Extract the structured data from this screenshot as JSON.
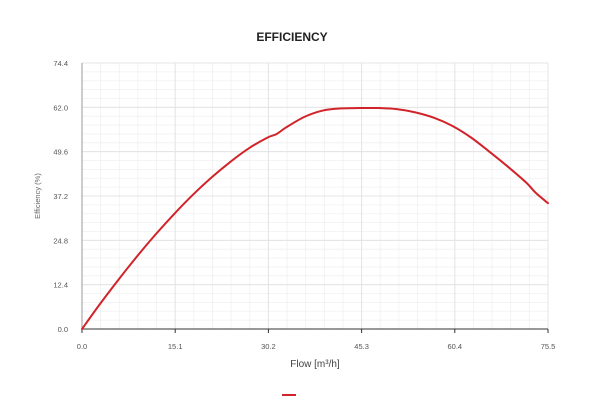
{
  "chart_data": {
    "type": "line",
    "title": "EFFICIENCY",
    "xlabel": "Flow [m³/h]",
    "ylabel": "Efficiency (%)",
    "xlim": [
      0,
      75.5
    ],
    "ylim": [
      0,
      74.4
    ],
    "x_ticks": [
      "0.0",
      "15.1",
      "30.2",
      "45.3",
      "60.4",
      "75.5"
    ],
    "y_ticks": [
      "0.0",
      "12.4",
      "24.8",
      "37.2",
      "49.6",
      "62.0",
      "74.4"
    ],
    "grid": true,
    "legend": "bottom-center",
    "colors": {
      "series": "#d1232a",
      "grid": "#e4e4e4",
      "axis": "#333333"
    },
    "series": [
      {
        "name": "",
        "x": [
          0,
          3,
          6,
          9,
          12,
          15,
          18,
          21,
          24,
          27,
          30,
          31.5,
          33,
          36,
          39,
          42,
          45,
          48,
          51,
          54,
          57,
          60,
          63,
          66,
          69,
          72,
          73.5,
          75.5
        ],
        "y": [
          0,
          7.2,
          14,
          20.5,
          26.6,
          32.3,
          37.6,
          42.4,
          46.7,
          50.5,
          53.5,
          54.5,
          56.3,
          59.3,
          61.1,
          61.7,
          61.8,
          61.8,
          61.5,
          60.6,
          59.1,
          56.8,
          53.6,
          49.6,
          45.4,
          40.9,
          38.1,
          35.2
        ]
      }
    ]
  }
}
